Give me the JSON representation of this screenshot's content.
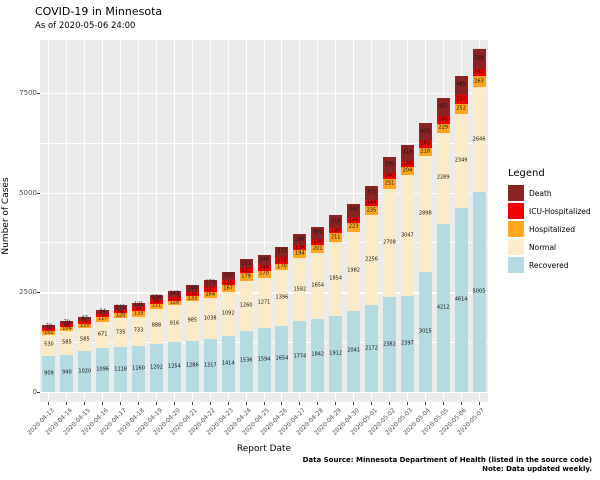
{
  "title": "COVID-19 in Minnesota",
  "subtitle": "As of 2020-05-06 24:00",
  "x_axis_title": "Report Date",
  "y_axis_title": "Number of Cases",
  "footer": {
    "line1": "Data Source: Minnesota Department of Health (listed in the source code)",
    "line2": "Note: Data updated weekly."
  },
  "legend": {
    "title": "Legend",
    "items": [
      {
        "label": "Death",
        "color": "#8B2323"
      },
      {
        "label": "ICU-Hospitalized",
        "color": "#F40000"
      },
      {
        "label": "Hospitalized",
        "color": "#FFA51E"
      },
      {
        "label": "Normal",
        "color": "#FCEBC8"
      },
      {
        "label": "Recovered",
        "color": "#B4DAE2"
      }
    ]
  },
  "chart_data": {
    "type": "bar",
    "stacked": true,
    "title": "COVID-19 in Minnesota",
    "subtitle": "As of 2020-05-06 24:00",
    "xlabel": "Report Date",
    "ylabel": "Number of Cases",
    "ylim": [
      0,
      8850
    ],
    "yticks": [
      0,
      2500,
      5000,
      7500
    ],
    "yticks_minor": [
      1250,
      3750,
      6250
    ],
    "grid": true,
    "legend_position": "right",
    "panel_background": "#EBEBEB",
    "categories": [
      "2020-04-13",
      "2020-04-14",
      "2020-04-15",
      "2020-04-16",
      "2020-04-17",
      "2020-04-18",
      "2020-04-19",
      "2020-04-20",
      "2020-04-21",
      "2020-04-22",
      "2020-04-23",
      "2020-04-24",
      "2020-04-25",
      "2020-04-26",
      "2020-04-27",
      "2020-04-28",
      "2020-04-29",
      "2020-04-30",
      "2020-05-01",
      "2020-05-02",
      "2020-05-03",
      "2020-05-04",
      "2020-05-05",
      "2020-05-06",
      "2020-05-07"
    ],
    "series": [
      {
        "name": "Recovered",
        "color": "#B4DAE2",
        "values": [
          909,
          940,
          1020,
          1096,
          1118,
          1160,
          1202,
          1254,
          1286,
          1317,
          1414,
          1536,
          1594,
          1654,
          1774,
          1842,
          1912,
          2041,
          2172,
          2382,
          2397,
          3015,
          4212,
          4614,
          5005
        ]
      },
      {
        "name": "Normal",
        "color": "#FCEBC8",
        "values": [
          530,
          585,
          585,
          671,
          735,
          733,
          888,
          916,
          985,
          1038,
          1092,
          1260,
          1271,
          1396,
          1582,
          1654,
          1854,
          1982,
          2256,
          2708,
          3047,
          2898,
          2289,
          2349,
          2646
        ]
      },
      {
        "name": "Hospitalized",
        "color": "#FFA51E",
        "values": [
          102,
          104,
          110,
          117,
          120,
          133,
          111,
          120,
          133,
          164,
          167,
          179,
          170,
          170,
          194,
          201,
          211,
          223,
          235,
          251,
          204,
          218,
          229,
          252,
          263
        ]
      },
      {
        "name": "ICU-Hospitalized",
        "color": "#F40000",
        "values": [
          64,
          68,
          74,
          75,
          86,
          94,
          98,
          103,
          111,
          117,
          125,
          131,
          148,
          155,
          126,
          130,
          134,
          138,
          144,
          160,
          138,
          185,
          180,
          230,
          180
        ]
      },
      {
        "name": "Death",
        "color": "#8B2323",
        "values": [
          70,
          79,
          87,
          94,
          111,
          121,
          134,
          143,
          160,
          179,
          200,
          221,
          244,
          272,
          286,
          301,
          319,
          343,
          371,
          395,
          419,
          428,
          455,
          485,
          508
        ]
      }
    ]
  }
}
